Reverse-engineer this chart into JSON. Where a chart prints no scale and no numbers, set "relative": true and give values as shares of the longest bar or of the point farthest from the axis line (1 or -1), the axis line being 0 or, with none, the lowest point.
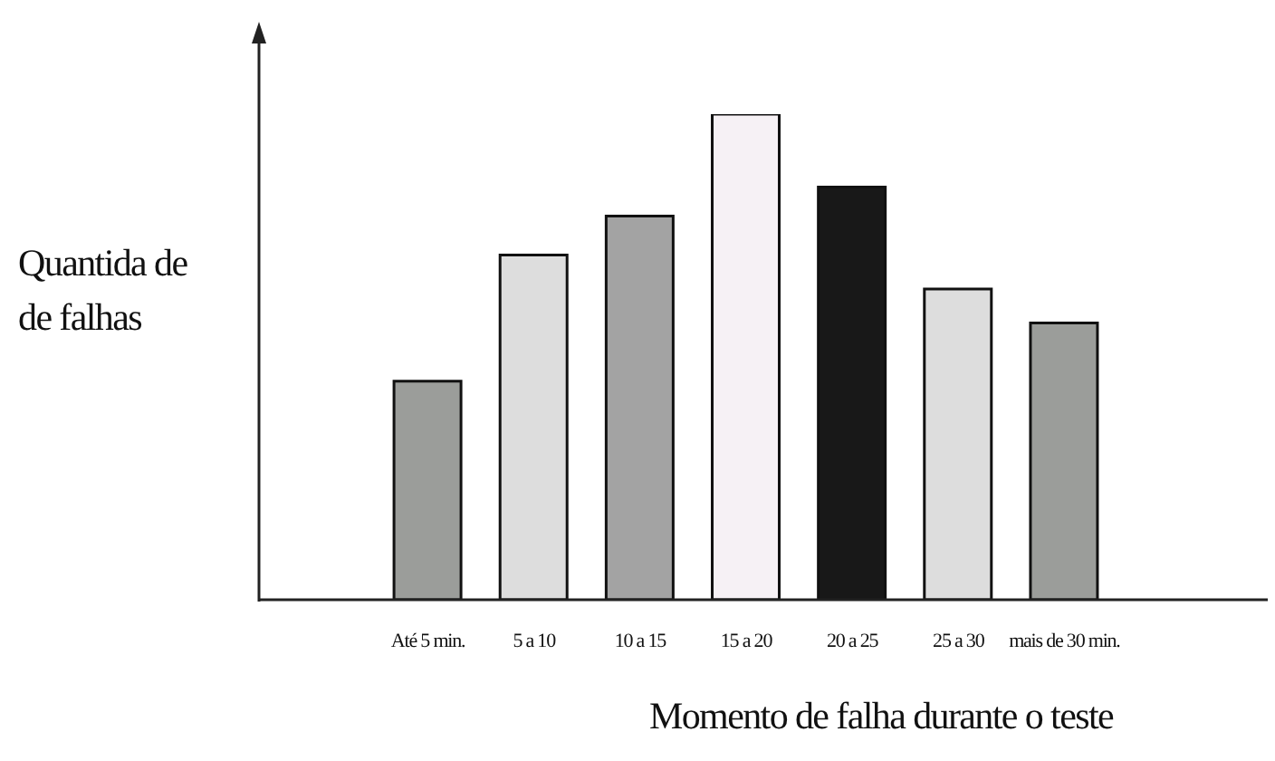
{
  "chart_data": {
    "type": "bar",
    "relative": true,
    "xlabel": "Momento de falha durante o teste",
    "ylabel": "Quantida de de falhas",
    "categories": [
      "Até 5 min.",
      "5 a 10",
      "10 a 15",
      "15 a 20",
      "20 a 25",
      "25 a 30",
      "mais de 30 min."
    ],
    "values": [
      0.45,
      0.71,
      0.79,
      1,
      0.85,
      0.64,
      0.57
    ],
    "colors": [
      "#9b9d9a",
      "#dddddd",
      "#a3a3a3",
      "#f6f1f5",
      "#181818",
      "#dddddd",
      "#9b9d9a"
    ],
    "grid": false,
    "legend": false
  }
}
